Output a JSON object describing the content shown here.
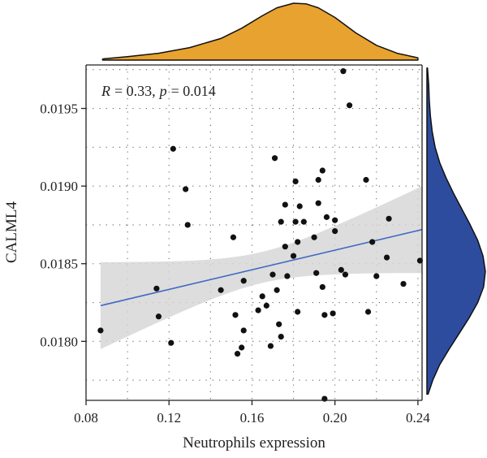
{
  "chart_data": {
    "type": "scatter",
    "title": "",
    "xlabel": "Neutrophils expression",
    "ylabel": "CALML4",
    "xlim": [
      0.08,
      0.242
    ],
    "ylim": [
      0.01762,
      0.01978
    ],
    "x_ticks": [
      0.08,
      0.12,
      0.16,
      0.2,
      0.24
    ],
    "x_tick_labels": [
      "0.08",
      "0.12",
      "0.16",
      "0.20",
      "0.24"
    ],
    "y_ticks": [
      0.018,
      0.0185,
      0.019,
      0.0195
    ],
    "y_tick_labels": [
      "0.0180",
      "0.0185",
      "0.0190",
      "0.0195"
    ],
    "grid": true,
    "annotation": {
      "r_label": "R",
      "r_value": "= 0.33,",
      "p_label": "p",
      "p_value": "= 0.014"
    },
    "regression": {
      "x": [
        0.087,
        0.242
      ],
      "y": [
        0.01823,
        0.01872
      ],
      "ci_lower": [
        0.0179,
        0.01852
      ],
      "ci_upper": [
        0.01857,
        0.01897
      ]
    },
    "points": [
      {
        "x": 0.087,
        "y": 0.01807
      },
      {
        "x": 0.114,
        "y": 0.01834
      },
      {
        "x": 0.115,
        "y": 0.01816
      },
      {
        "x": 0.121,
        "y": 0.01799
      },
      {
        "x": 0.122,
        "y": 0.01924
      },
      {
        "x": 0.128,
        "y": 0.01898
      },
      {
        "x": 0.129,
        "y": 0.01875
      },
      {
        "x": 0.145,
        "y": 0.01833
      },
      {
        "x": 0.151,
        "y": 0.01867
      },
      {
        "x": 0.152,
        "y": 0.01817
      },
      {
        "x": 0.153,
        "y": 0.01792
      },
      {
        "x": 0.155,
        "y": 0.01796
      },
      {
        "x": 0.156,
        "y": 0.01807
      },
      {
        "x": 0.156,
        "y": 0.01839
      },
      {
        "x": 0.163,
        "y": 0.0182
      },
      {
        "x": 0.165,
        "y": 0.01829
      },
      {
        "x": 0.167,
        "y": 0.01823
      },
      {
        "x": 0.169,
        "y": 0.01797
      },
      {
        "x": 0.17,
        "y": 0.01843
      },
      {
        "x": 0.171,
        "y": 0.01918
      },
      {
        "x": 0.172,
        "y": 0.01833
      },
      {
        "x": 0.173,
        "y": 0.01811
      },
      {
        "x": 0.174,
        "y": 0.01803
      },
      {
        "x": 0.174,
        "y": 0.01877
      },
      {
        "x": 0.176,
        "y": 0.01861
      },
      {
        "x": 0.176,
        "y": 0.01888
      },
      {
        "x": 0.177,
        "y": 0.01842
      },
      {
        "x": 0.18,
        "y": 0.01855
      },
      {
        "x": 0.181,
        "y": 0.01877
      },
      {
        "x": 0.181,
        "y": 0.01903
      },
      {
        "x": 0.182,
        "y": 0.01819
      },
      {
        "x": 0.182,
        "y": 0.01864
      },
      {
        "x": 0.183,
        "y": 0.01887
      },
      {
        "x": 0.185,
        "y": 0.01877
      },
      {
        "x": 0.19,
        "y": 0.01867
      },
      {
        "x": 0.191,
        "y": 0.01844
      },
      {
        "x": 0.192,
        "y": 0.01889
      },
      {
        "x": 0.192,
        "y": 0.01904
      },
      {
        "x": 0.194,
        "y": 0.01835
      },
      {
        "x": 0.194,
        "y": 0.0191
      },
      {
        "x": 0.195,
        "y": 0.01817
      },
      {
        "x": 0.195,
        "y": 0.01763
      },
      {
        "x": 0.196,
        "y": 0.0188
      },
      {
        "x": 0.199,
        "y": 0.01818
      },
      {
        "x": 0.2,
        "y": 0.01878
      },
      {
        "x": 0.2,
        "y": 0.01871
      },
      {
        "x": 0.203,
        "y": 0.01846
      },
      {
        "x": 0.204,
        "y": 0.01974
      },
      {
        "x": 0.205,
        "y": 0.01843
      },
      {
        "x": 0.207,
        "y": 0.01952
      },
      {
        "x": 0.215,
        "y": 0.01904
      },
      {
        "x": 0.216,
        "y": 0.01819
      },
      {
        "x": 0.218,
        "y": 0.01864
      },
      {
        "x": 0.22,
        "y": 0.01842
      },
      {
        "x": 0.225,
        "y": 0.01854
      },
      {
        "x": 0.226,
        "y": 0.01879
      },
      {
        "x": 0.233,
        "y": 0.01837
      },
      {
        "x": 0.241,
        "y": 0.01852
      }
    ],
    "marginal_x": {
      "color": "#E8A22F",
      "x": [
        0.088,
        0.1,
        0.115,
        0.13,
        0.145,
        0.155,
        0.165,
        0.172,
        0.18,
        0.186,
        0.192,
        0.2,
        0.21,
        0.22,
        0.23,
        0.24
      ],
      "density": [
        0.02,
        0.06,
        0.12,
        0.22,
        0.38,
        0.56,
        0.78,
        0.92,
        1.0,
        0.99,
        0.92,
        0.75,
        0.48,
        0.26,
        0.12,
        0.04
      ]
    },
    "marginal_y": {
      "color": "#2E4C9E",
      "y": [
        0.01766,
        0.01775,
        0.01785,
        0.01795,
        0.01805,
        0.01815,
        0.01825,
        0.01835,
        0.01845,
        0.01855,
        0.01865,
        0.01875,
        0.01885,
        0.01895,
        0.01905,
        0.01915,
        0.01925,
        0.01935,
        0.01945,
        0.01955,
        0.01965,
        0.01976
      ],
      "density": [
        0.02,
        0.1,
        0.22,
        0.38,
        0.55,
        0.72,
        0.87,
        0.97,
        1.0,
        0.96,
        0.87,
        0.74,
        0.6,
        0.46,
        0.33,
        0.22,
        0.14,
        0.09,
        0.06,
        0.04,
        0.03,
        0.01
      ]
    },
    "colors": {
      "point": "#111111",
      "line": "#4169C4",
      "ci_band": "#d4d4d4"
    }
  }
}
